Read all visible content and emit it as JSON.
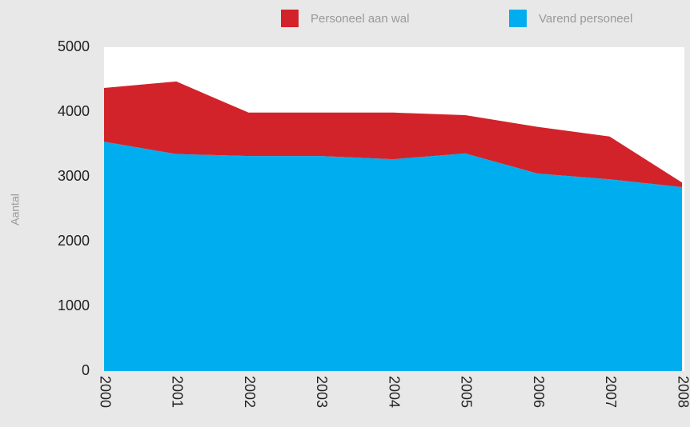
{
  "chart_data": {
    "type": "area",
    "stacked": true,
    "y_label": "Aantal",
    "categories": [
      "2000",
      "2001",
      "2002",
      "2003",
      "2004",
      "2005",
      "2006",
      "2007",
      "2008"
    ],
    "series": [
      {
        "name": "Personeel aan wal",
        "color": "#d2232a",
        "values": [
          830,
          1120,
          670,
          670,
          720,
          590,
          720,
          660,
          70
        ]
      },
      {
        "name": "Varend personeel",
        "color": "#00aeef",
        "values": [
          3540,
          3350,
          3320,
          3320,
          3270,
          3360,
          3050,
          2960,
          2840
        ]
      }
    ],
    "ylim": [
      0,
      5000
    ],
    "yticks": [
      0,
      1000,
      2000,
      3000,
      4000,
      5000
    ],
    "grid": false
  }
}
